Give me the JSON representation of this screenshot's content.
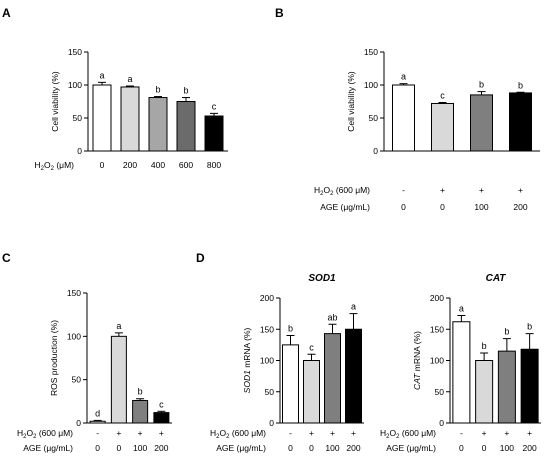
{
  "panels": [
    "A",
    "B",
    "C",
    "D"
  ],
  "chart_data": [
    {
      "type": "bar",
      "panel": "A",
      "ylabel": "Cell viability (%)",
      "ylim": [
        0,
        150
      ],
      "yticks": [
        0,
        50,
        100,
        150
      ],
      "condition_rows": [
        {
          "label": "H2O2 (μM)",
          "values": [
            "0",
            "200",
            "400",
            "600",
            "800"
          ]
        }
      ],
      "values": [
        100,
        97,
        81,
        75,
        53
      ],
      "errors": [
        4,
        1.5,
        1.5,
        6,
        4
      ],
      "letters": [
        "a",
        "a",
        "b",
        "b",
        "c"
      ],
      "colors": [
        "#ffffff",
        "#d9d9d9",
        "#a6a6a6",
        "#6b6b6b",
        "#000000"
      ]
    },
    {
      "type": "bar",
      "panel": "B",
      "ylabel": "Cell viability (%)",
      "ylim": [
        0,
        150
      ],
      "yticks": [
        0,
        50,
        100,
        150
      ],
      "condition_rows": [
        {
          "label": "H2O2 (600 μM)",
          "values": [
            "-",
            "+",
            "+",
            "+"
          ]
        },
        {
          "label": "AGE (μg/mL)",
          "values": [
            "0",
            "0",
            "100",
            "200"
          ]
        }
      ],
      "values": [
        100,
        72,
        85,
        88
      ],
      "errors": [
        2,
        1.5,
        5,
        1
      ],
      "letters": [
        "a",
        "c",
        "b",
        "b"
      ],
      "colors": [
        "#ffffff",
        "#d9d9d9",
        "#7f7f7f",
        "#000000"
      ]
    },
    {
      "type": "bar",
      "panel": "C",
      "ylabel": "ROS production (%)",
      "ylim": [
        0,
        150
      ],
      "yticks": [
        0,
        50,
        100,
        150
      ],
      "condition_rows": [
        {
          "label": "H2O2 (600 μM)",
          "values": [
            "-",
            "+",
            "+",
            "+"
          ]
        },
        {
          "label": "AGE (μg/mL)",
          "values": [
            "0",
            "0",
            "100",
            "200"
          ]
        }
      ],
      "values": [
        2,
        100,
        26,
        12
      ],
      "errors": [
        1,
        4,
        2,
        1.5
      ],
      "letters": [
        "d",
        "a",
        "b",
        "c"
      ],
      "colors": [
        "#ffffff",
        "#d9d9d9",
        "#7f7f7f",
        "#000000"
      ]
    },
    {
      "type": "bar",
      "panel": "D",
      "title": "SOD1",
      "ylabel_italic": "SOD1",
      "ylabel_rest": " mRNA (%)",
      "ylim": [
        0,
        200
      ],
      "yticks": [
        0,
        50,
        100,
        150,
        200
      ],
      "condition_rows": [
        {
          "label": "H2O2 (600 μM)",
          "values": [
            "-",
            "+",
            "+",
            "+"
          ]
        },
        {
          "label": "AGE (μg/mL)",
          "values": [
            "0",
            "0",
            "100",
            "200"
          ]
        }
      ],
      "values": [
        125,
        100,
        143,
        150
      ],
      "errors": [
        15,
        10,
        15,
        25
      ],
      "letters": [
        "b",
        "c",
        "ab",
        "a"
      ],
      "colors": [
        "#ffffff",
        "#d9d9d9",
        "#7f7f7f",
        "#000000"
      ]
    },
    {
      "type": "bar",
      "panel": "D",
      "title": "CAT",
      "ylabel_italic": "CAT",
      "ylabel_rest": " mRNA (%)",
      "ylim": [
        0,
        200
      ],
      "yticks": [
        0,
        50,
        100,
        150,
        200
      ],
      "condition_rows": [
        {
          "label": "H2O2 (600 μM)",
          "values": [
            "-",
            "+",
            "+",
            "+"
          ]
        },
        {
          "label": "AGE (μg/mL)",
          "values": [
            "0",
            "0",
            "100",
            "200"
          ]
        }
      ],
      "values": [
        162,
        100,
        115,
        118
      ],
      "errors": [
        10,
        12,
        20,
        25
      ],
      "letters": [
        "a",
        "b",
        "b",
        "b"
      ],
      "colors": [
        "#ffffff",
        "#d9d9d9",
        "#7f7f7f",
        "#000000"
      ]
    }
  ]
}
